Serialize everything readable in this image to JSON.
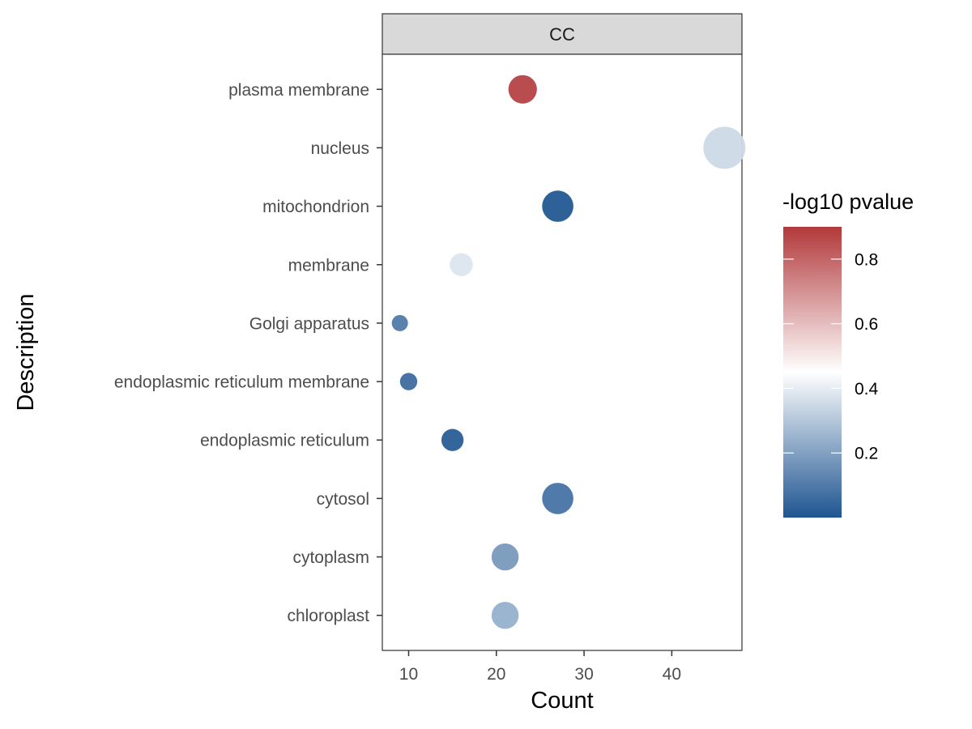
{
  "chart_data": {
    "type": "scatter",
    "facet": "CC",
    "xlabel": "Count",
    "ylabel": "Description",
    "xlim": [
      7,
      48
    ],
    "x_ticks": [
      10,
      20,
      30,
      40
    ],
    "grid": false,
    "legend_position": "right",
    "color_legend": {
      "title": "-log10 pvalue",
      "range": [
        0.0,
        0.9
      ],
      "ticks": [
        0.2,
        0.4,
        0.6,
        0.8
      ],
      "tick_labels": [
        "0.2",
        "0.4",
        "0.6",
        "0.8"
      ],
      "low_color": "#1f5591",
      "mid_color": "#ffffff",
      "mid_value": 0.45,
      "high_color": "#b2393b"
    },
    "categories": [
      "plasma membrane",
      "nucleus",
      "mitochondrion",
      "membrane",
      "Golgi apparatus",
      "endoplasmic reticulum membrane",
      "endoplasmic reticulum",
      "cytosol",
      "cytoplasm",
      "chloroplast"
    ],
    "points": [
      {
        "description": "plasma membrane",
        "count": 23,
        "neg_log10_pvalue": 0.88
      },
      {
        "description": "nucleus",
        "count": 46,
        "neg_log10_pvalue": 0.35
      },
      {
        "description": "mitochondrion",
        "count": 27,
        "neg_log10_pvalue": 0.01
      },
      {
        "description": "membrane",
        "count": 16,
        "neg_log10_pvalue": 0.38
      },
      {
        "description": "Golgi apparatus",
        "count": 9,
        "neg_log10_pvalue": 0.1
      },
      {
        "description": "endoplasmic reticulum membrane",
        "count": 10,
        "neg_log10_pvalue": 0.06
      },
      {
        "description": "endoplasmic reticulum",
        "count": 15,
        "neg_log10_pvalue": 0.02
      },
      {
        "description": "cytosol",
        "count": 27,
        "neg_log10_pvalue": 0.08
      },
      {
        "description": "cytoplasm",
        "count": 21,
        "neg_log10_pvalue": 0.18
      },
      {
        "description": "chloroplast",
        "count": 21,
        "neg_log10_pvalue": 0.24
      }
    ]
  }
}
